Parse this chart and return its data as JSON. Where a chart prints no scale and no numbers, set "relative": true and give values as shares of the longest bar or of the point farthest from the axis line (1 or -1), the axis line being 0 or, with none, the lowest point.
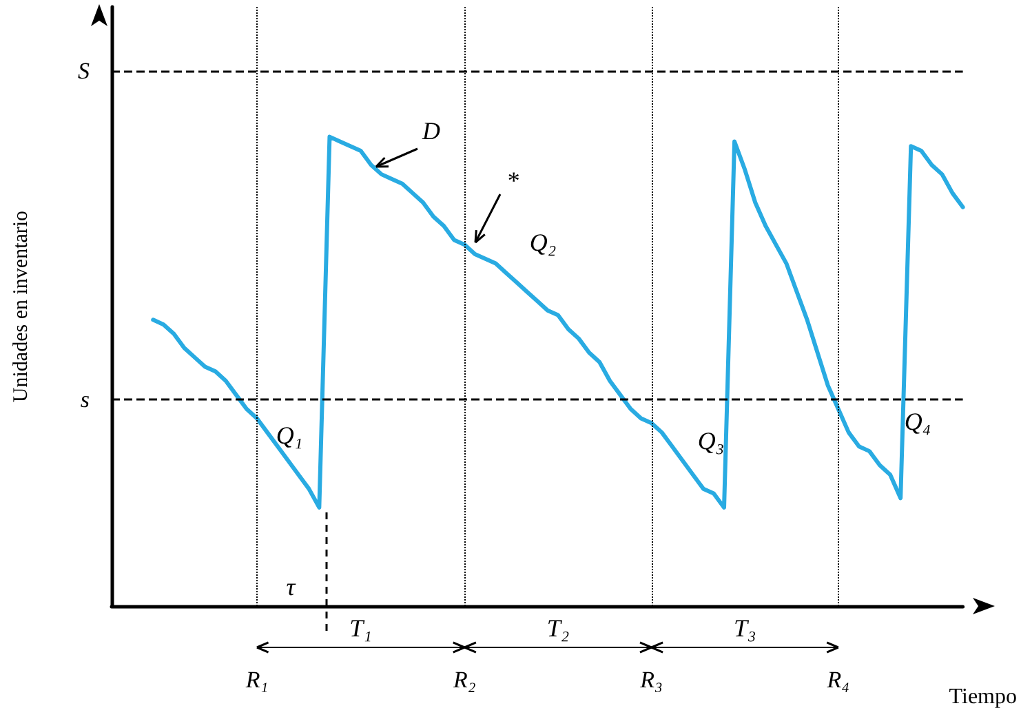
{
  "chart_data": {
    "type": "line",
    "relative": true,
    "tick_labels": "x",
    "grid": false,
    "marker": "none",
    "line_style": "solid",
    "xlabel": "Tiempo",
    "ylabel": "Unidades en inventario",
    "categories": [
      null,
      null,
      null,
      null,
      null,
      null,
      null,
      null,
      null,
      null,
      null,
      null,
      null,
      null,
      "R₁",
      null,
      null,
      null,
      null,
      null,
      null,
      null,
      null,
      null,
      null,
      null,
      null,
      null,
      null,
      null,
      null,
      null,
      null,
      null,
      "R₂",
      null,
      null,
      null,
      null,
      null,
      null,
      null,
      null,
      null,
      null,
      null,
      null,
      null,
      null,
      null,
      null,
      null,
      "R₃",
      null,
      null,
      null,
      null,
      null,
      null,
      null,
      null,
      null,
      null,
      null,
      null,
      null,
      null,
      null,
      null,
      null,
      "R₄",
      null,
      null,
      null,
      null,
      null,
      null,
      null,
      null,
      null,
      null,
      null,
      null
    ],
    "series": [
      {
        "color": "#29abe2",
        "values": [
          null,
          null,
          null,
          null,
          0.61,
          0.6,
          0.58,
          0.55,
          0.53,
          0.51,
          0.5,
          0.48,
          0.45,
          0.42,
          0.4,
          0.37,
          0.34,
          0.31,
          0.28,
          0.25,
          0.21,
          1.0,
          0.99,
          0.98,
          0.97,
          0.94,
          0.92,
          0.91,
          0.9,
          0.88,
          0.86,
          0.83,
          0.81,
          0.78,
          0.77,
          0.75,
          0.74,
          0.73,
          0.71,
          0.69,
          0.67,
          0.65,
          0.63,
          0.62,
          0.59,
          0.57,
          0.54,
          0.52,
          0.48,
          0.45,
          0.42,
          0.4,
          0.39,
          0.37,
          0.34,
          0.31,
          0.28,
          0.25,
          0.24,
          0.21,
          0.99,
          0.93,
          0.86,
          0.81,
          0.77,
          0.73,
          0.67,
          0.61,
          0.54,
          0.47,
          0.42,
          0.37,
          0.34,
          0.33,
          0.3,
          0.28,
          0.23,
          0.98,
          0.97,
          0.94,
          0.92,
          0.88,
          0.85
        ]
      }
    ],
    "ref_lines": [
      {
        "axis": "y",
        "value": 1.14,
        "label": "S",
        "line_style": "dashed",
        "color": "#000000"
      },
      {
        "axis": "y",
        "value": 0.44,
        "label": "s",
        "line_style": "dashed",
        "color": "#000000"
      },
      {
        "axis": "x",
        "value": "R₁",
        "line_style": "dotted",
        "color": "#000000"
      },
      {
        "axis": "x",
        "value": "R₂",
        "line_style": "dotted",
        "color": "#000000"
      },
      {
        "axis": "x",
        "value": "R₃",
        "line_style": "dotted",
        "color": "#000000"
      },
      {
        "axis": "x",
        "value": "R₄",
        "line_style": "dotted",
        "color": "#000000"
      }
    ],
    "annotations": [
      "D",
      "*",
      "Q₁",
      "Q₂",
      "Q₃",
      "Q₄",
      "τ",
      "T₁",
      "T₂",
      "T₃"
    ]
  }
}
